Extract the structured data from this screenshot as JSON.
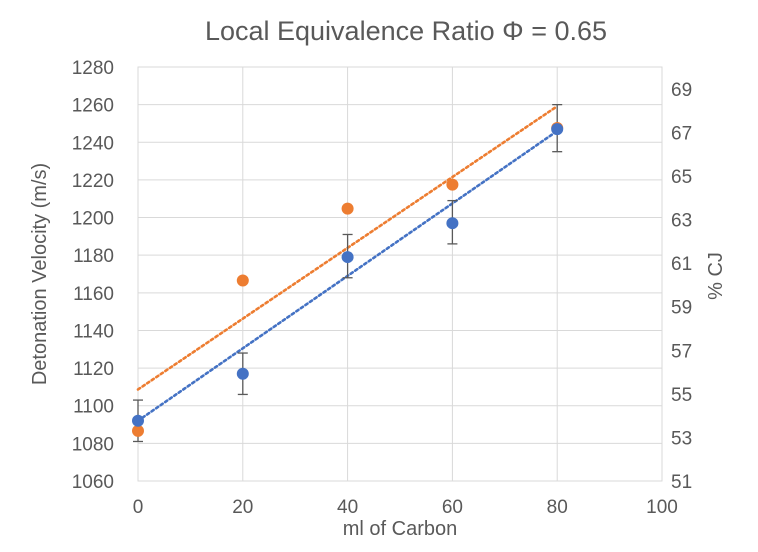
{
  "chart_data": {
    "type": "scatter",
    "title": "Local Equivalence Ratio  Φ = 0.65",
    "xlabel": "ml of Carbon",
    "ylabel": "Detonation Velocity (m/s)",
    "y2label": "% CJ",
    "xlim": [
      0,
      100
    ],
    "ylim": [
      1060,
      1280
    ],
    "y2lim": [
      51,
      70
    ],
    "x_ticks": [
      "0",
      "20",
      "40",
      "60",
      "80",
      "100"
    ],
    "y_ticks": [
      "1060",
      "1080",
      "1100",
      "1120",
      "1140",
      "1160",
      "1180",
      "1200",
      "1220",
      "1240",
      "1260",
      "1280"
    ],
    "y2_ticks": [
      "51",
      "53",
      "55",
      "57",
      "59",
      "61",
      "63",
      "65",
      "67",
      "69"
    ],
    "grid": true,
    "series": [
      {
        "axis": "left",
        "color": "#4472c4",
        "error_bars": true,
        "points": [
          {
            "x": 0,
            "y": 1092,
            "err_low": 1081,
            "err_high": 1103
          },
          {
            "x": 20,
            "y": 1117,
            "err_low": 1106,
            "err_high": 1128
          },
          {
            "x": 40,
            "y": 1179,
            "err_low": 1168,
            "err_high": 1191
          },
          {
            "x": 60,
            "y": 1197,
            "err_low": 1186,
            "err_high": 1209
          },
          {
            "x": 80,
            "y": 1247,
            "err_low": 1235,
            "err_high": 1260
          }
        ],
        "trendline": {
          "style": "dotted",
          "x": [
            0,
            80
          ],
          "y": [
            1092,
            1246
          ]
        }
      },
      {
        "axis": "right",
        "color": "#ed7d31",
        "error_bars": false,
        "points": [
          {
            "x": 0,
            "y": 53.3
          },
          {
            "x": 20,
            "y": 60.2
          },
          {
            "x": 40,
            "y": 63.5
          },
          {
            "x": 60,
            "y": 64.6
          },
          {
            "x": 80,
            "y": 67.2
          }
        ],
        "trendline": {
          "style": "dotted",
          "x": [
            0,
            80
          ],
          "y": [
            55.2,
            68.2
          ]
        }
      }
    ]
  }
}
